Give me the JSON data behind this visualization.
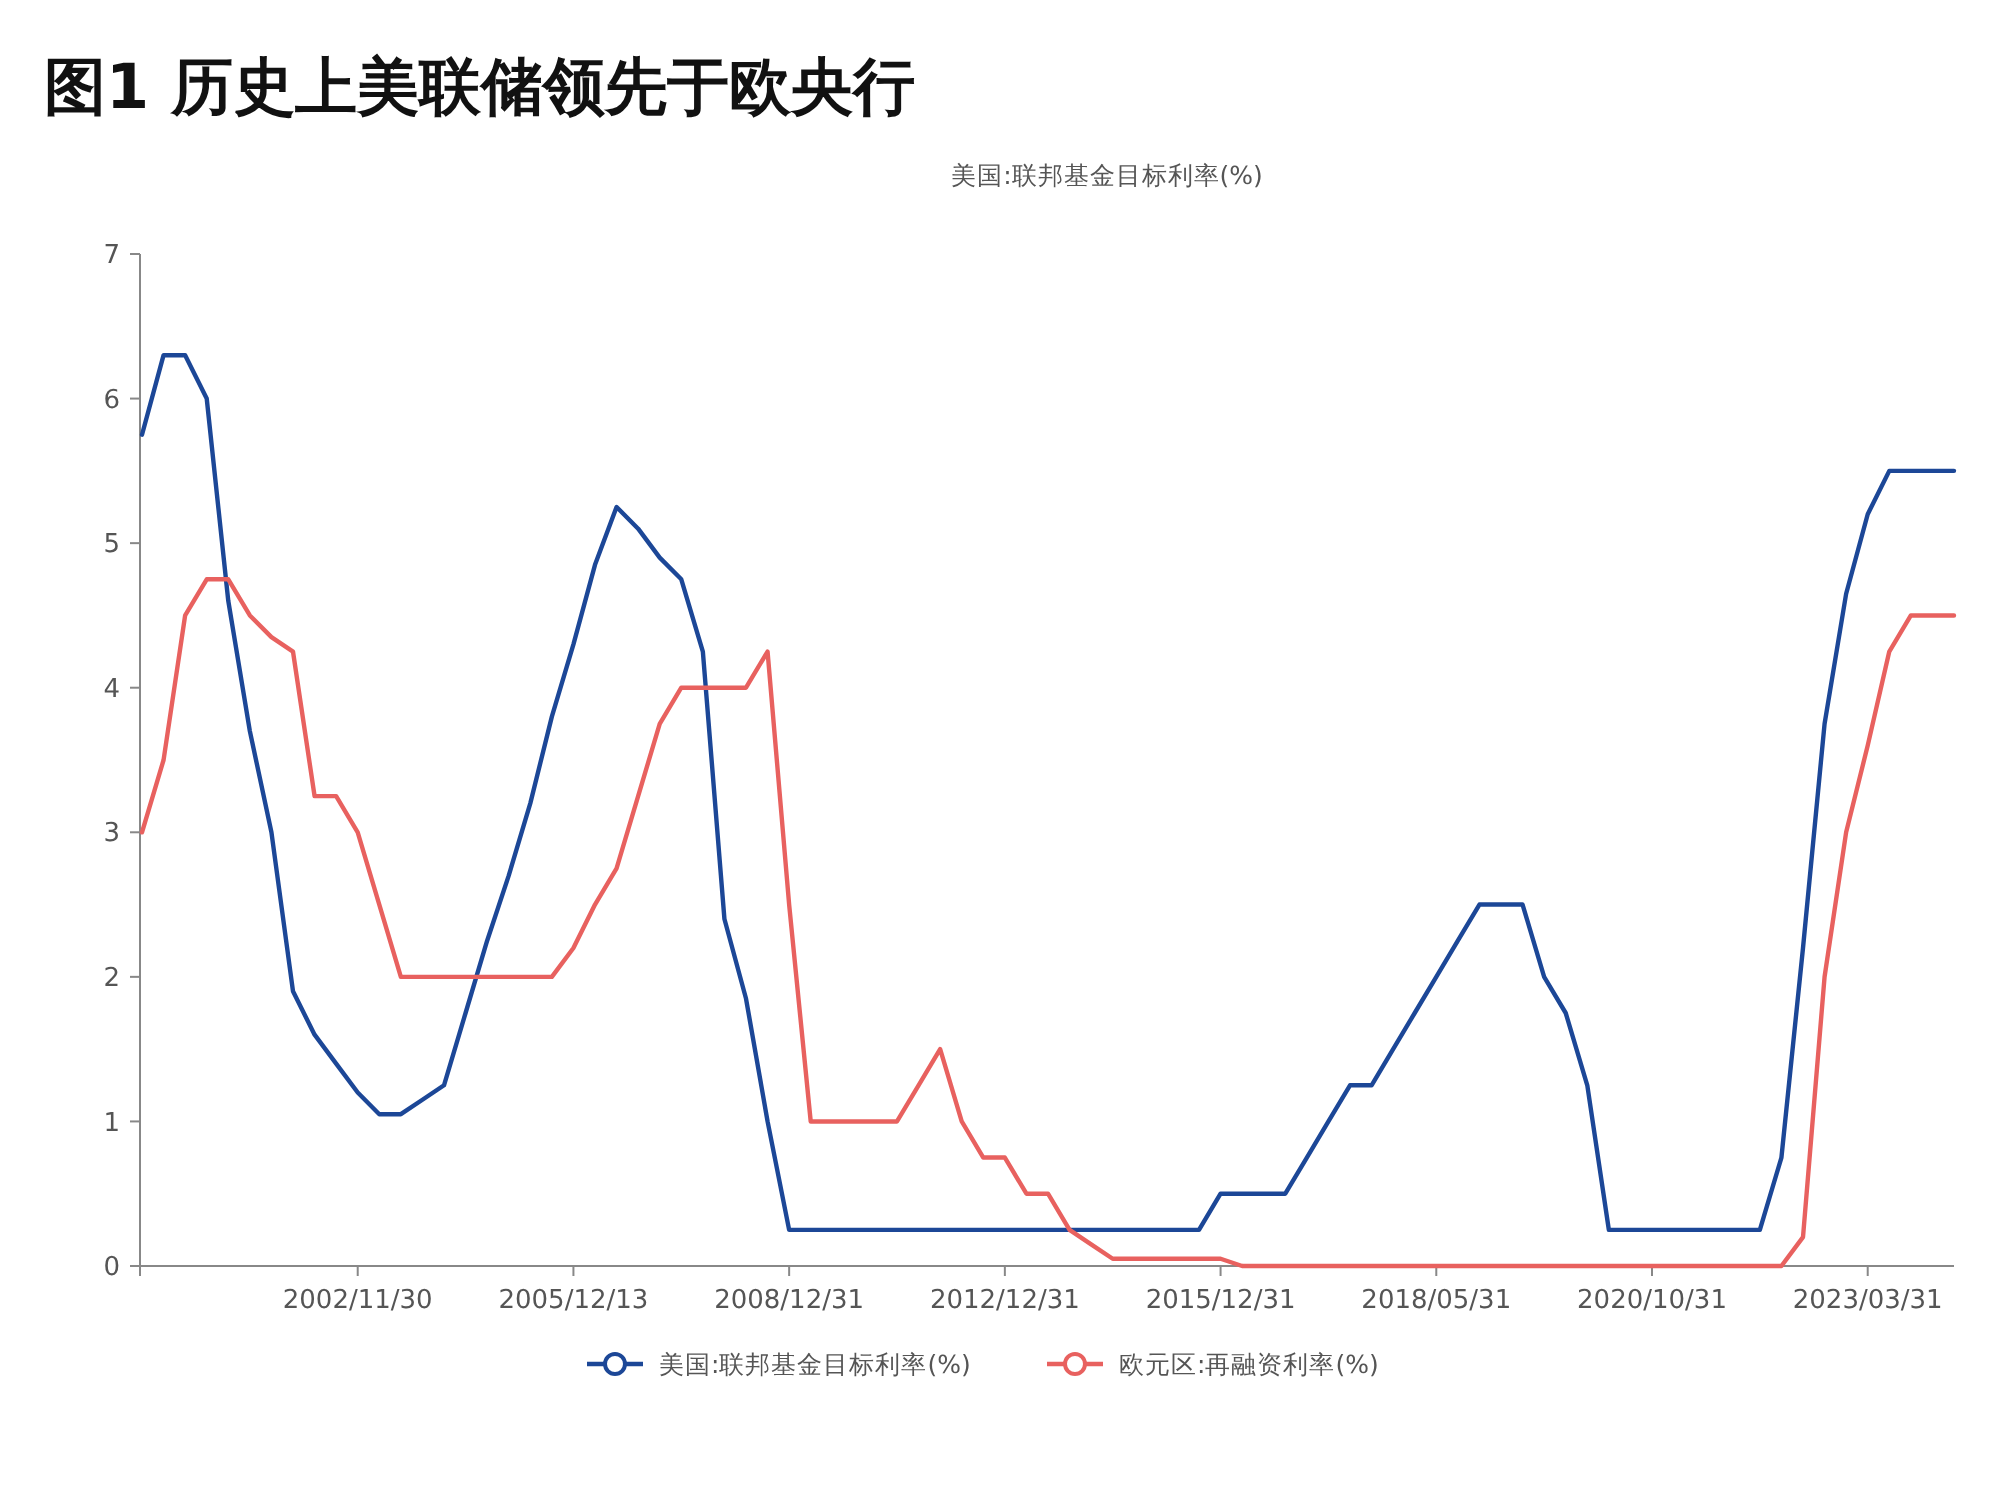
{
  "chart_data": {
    "type": "line",
    "title": "图1  历史上美联储领先于欧央行",
    "subtitle": "美国:联邦基金目标利率(%)",
    "categories": [
      null,
      null,
      null,
      null,
      null,
      null,
      null,
      null,
      null,
      null,
      "2002/11/30",
      null,
      null,
      null,
      null,
      null,
      null,
      null,
      null,
      null,
      "2005/12/13",
      null,
      null,
      null,
      null,
      null,
      null,
      null,
      null,
      null,
      "2008/12/31",
      null,
      null,
      null,
      null,
      null,
      null,
      null,
      null,
      null,
      "2012/12/31",
      null,
      null,
      null,
      null,
      null,
      null,
      null,
      null,
      null,
      "2015/12/31",
      null,
      null,
      null,
      null,
      null,
      null,
      null,
      null,
      null,
      "2018/05/31",
      null,
      null,
      null,
      null,
      null,
      null,
      null,
      null,
      null,
      "2020/10/31",
      null,
      null,
      null,
      null,
      null,
      null,
      null,
      null,
      null,
      "2023/03/31",
      null,
      null,
      null,
      null
    ],
    "series": [
      {
        "name": "美国:联邦基金目标利率(%)",
        "color": "#1c4797",
        "values": [
          5.75,
          6.3,
          6.3,
          6.0,
          4.6,
          3.7,
          3.0,
          1.9,
          1.6,
          1.4,
          1.2,
          1.05,
          1.05,
          1.15,
          1.25,
          1.75,
          2.25,
          2.7,
          3.2,
          3.8,
          4.3,
          4.85,
          5.25,
          5.1,
          4.9,
          4.75,
          4.25,
          2.4,
          1.85,
          1.0,
          0.25,
          0.25,
          0.25,
          0.25,
          0.25,
          0.25,
          0.25,
          0.25,
          0.25,
          0.25,
          0.25,
          0.25,
          0.25,
          0.25,
          0.25,
          0.25,
          0.25,
          0.25,
          0.25,
          0.25,
          0.5,
          0.5,
          0.5,
          0.5,
          0.75,
          1.0,
          1.25,
          1.25,
          1.5,
          1.75,
          2.0,
          2.25,
          2.5,
          2.5,
          2.5,
          2.0,
          1.75,
          1.25,
          0.25,
          0.25,
          0.25,
          0.25,
          0.25,
          0.25,
          0.25,
          0.25,
          0.75,
          2.2,
          3.75,
          4.65,
          5.2,
          5.5,
          5.5,
          5.5,
          5.5
        ]
      },
      {
        "name": "欧元区:再融资利率(%)",
        "color": "#e8615f",
        "values": [
          3.0,
          3.5,
          4.5,
          4.75,
          4.75,
          4.5,
          4.35,
          4.25,
          3.25,
          3.25,
          3.0,
          2.5,
          2.0,
          2.0,
          2.0,
          2.0,
          2.0,
          2.0,
          2.0,
          2.0,
          2.2,
          2.5,
          2.75,
          3.25,
          3.75,
          4.0,
          4.0,
          4.0,
          4.0,
          4.25,
          2.5,
          1.0,
          1.0,
          1.0,
          1.0,
          1.0,
          1.25,
          1.5,
          1.0,
          0.75,
          0.75,
          0.5,
          0.5,
          0.25,
          0.15,
          0.05,
          0.05,
          0.05,
          0.05,
          0.05,
          0.05,
          0,
          0,
          0,
          0,
          0,
          0,
          0,
          0,
          0,
          0,
          0,
          0,
          0,
          0,
          0,
          0,
          0,
          0,
          0,
          0,
          0,
          0,
          0,
          0,
          0,
          0,
          0.2,
          2.0,
          3.0,
          3.6,
          4.25,
          4.5,
          4.5,
          4.5
        ]
      }
    ],
    "ylim": [
      0,
      7
    ],
    "yticks": [
      0,
      1,
      2,
      3,
      4,
      5,
      6,
      7
    ],
    "legend": "bottom"
  }
}
